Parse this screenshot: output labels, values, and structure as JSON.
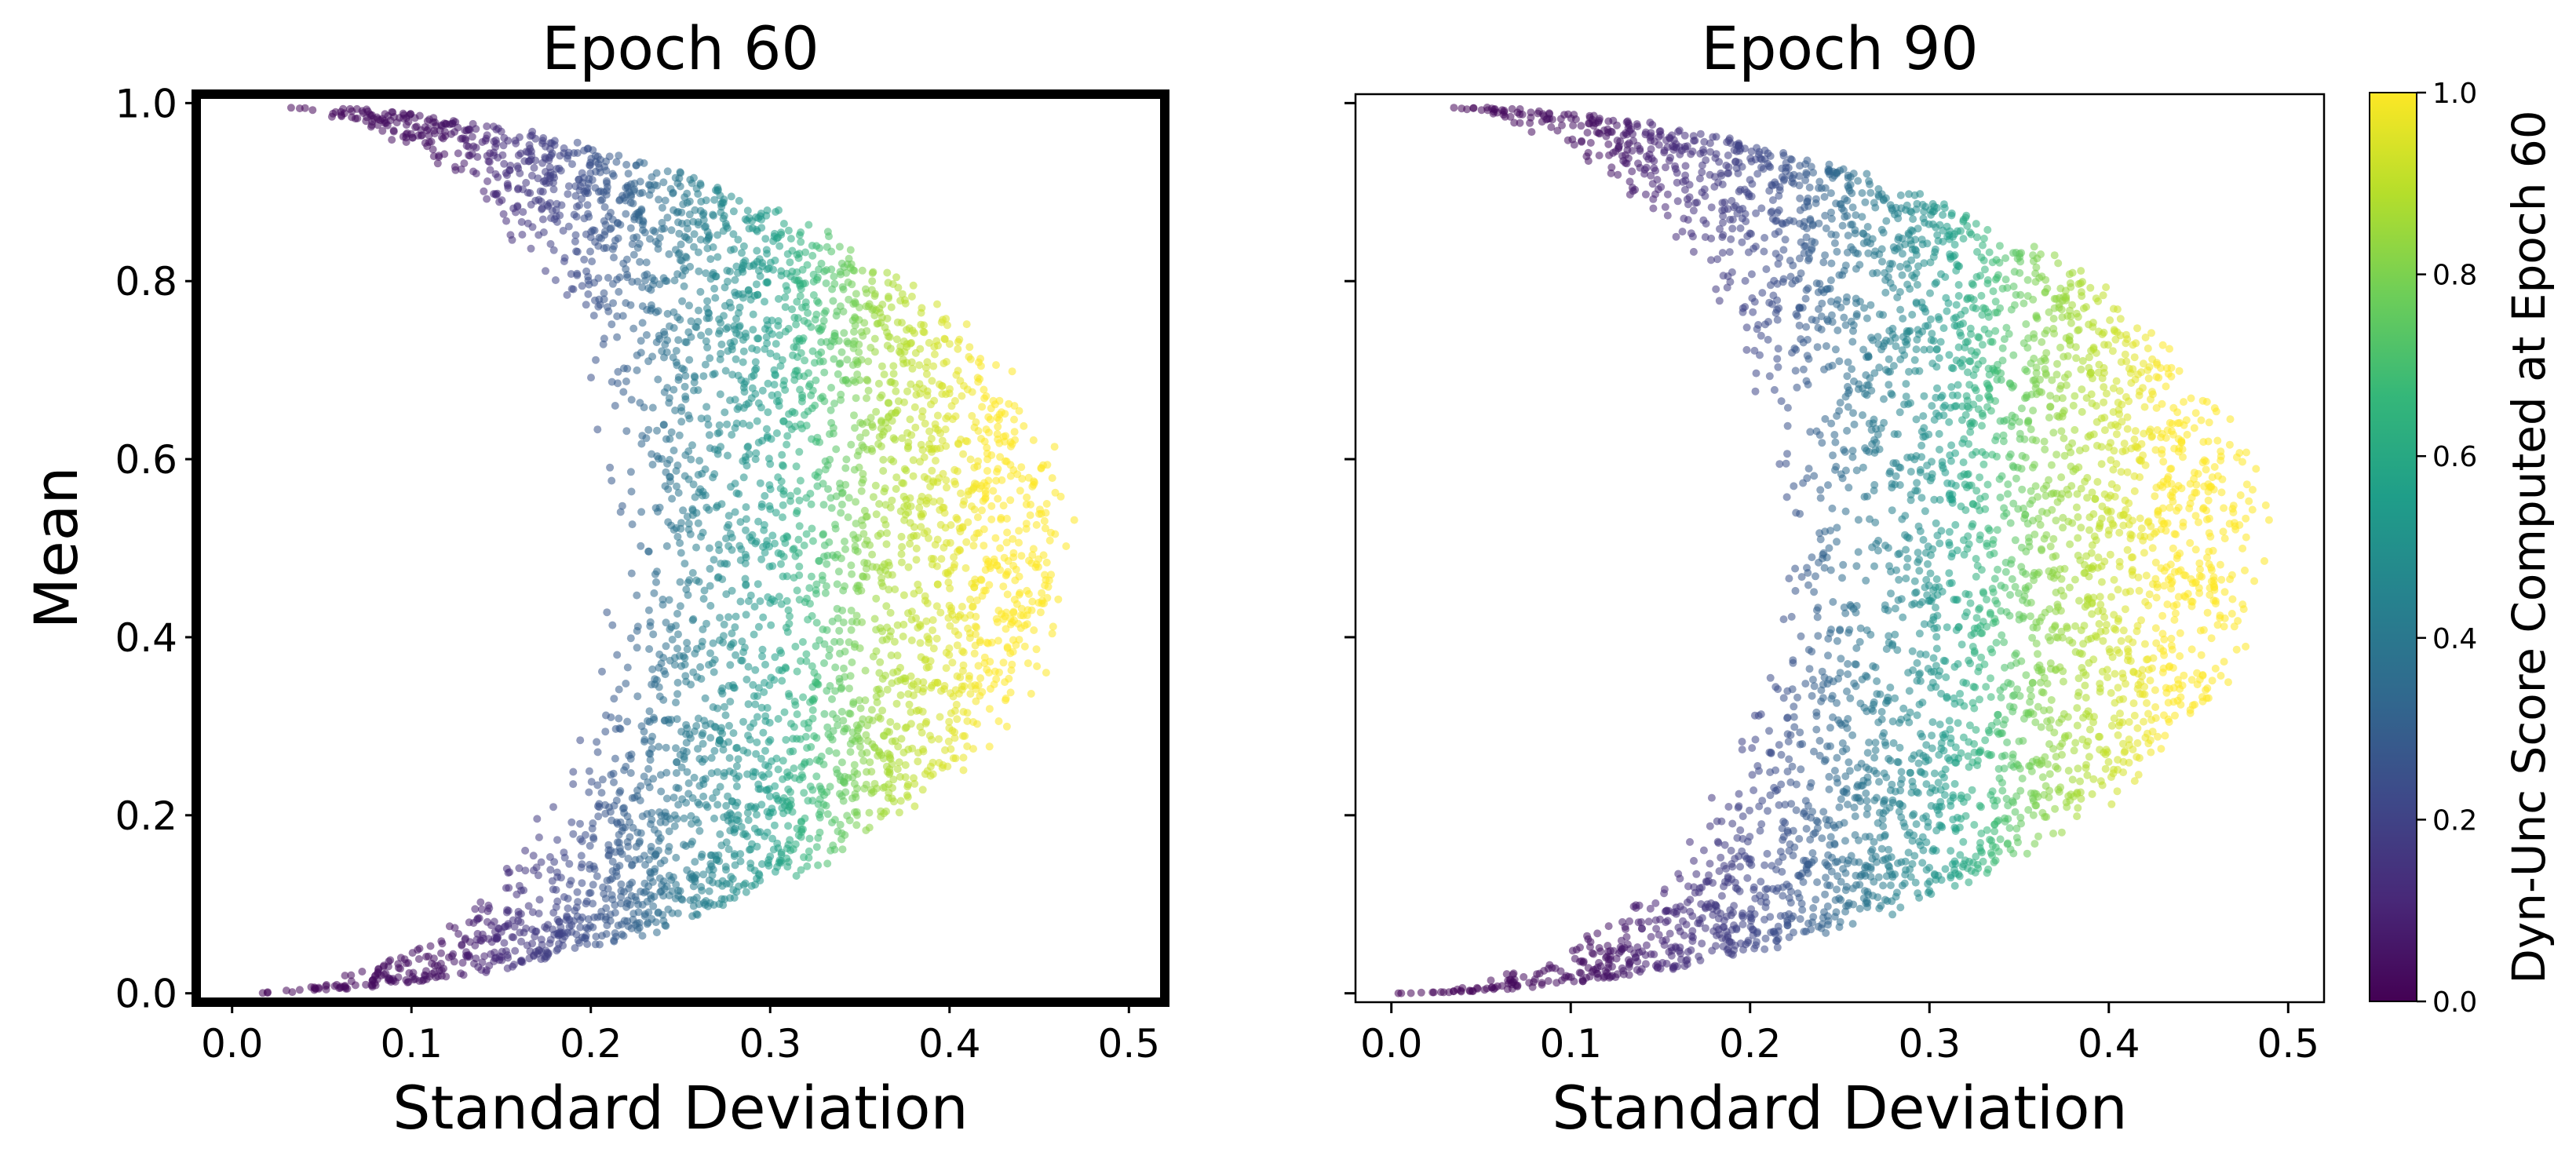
{
  "chart_data": [
    {
      "type": "scatter",
      "title": "Epoch 60",
      "xlabel": "Standard Deviation",
      "ylabel": "Mean",
      "xlim": [
        -0.02,
        0.52
      ],
      "ylim": [
        -0.01,
        1.01
      ],
      "x_ticks": [
        "0.0",
        "0.1",
        "0.2",
        "0.3",
        "0.4",
        "0.5"
      ],
      "y_ticks": [
        "0.0",
        "0.2",
        "0.4",
        "0.6",
        "0.8",
        "1.0"
      ],
      "frame": "thick-black",
      "color_by": "Dyn-Unc score",
      "point_cloud": {
        "shape": "crescent between sqrt(m(1-m))*0.45 and sqrt(m(1-m))*0.92",
        "max_std": 0.46,
        "peak_mean": 0.55,
        "color_vs_std": [
          [
            0.0,
            0.0
          ],
          [
            0.12,
            0.05
          ],
          [
            0.22,
            0.3
          ],
          [
            0.3,
            0.55
          ],
          [
            0.36,
            0.85
          ],
          [
            0.42,
            1.0
          ]
        ]
      }
    },
    {
      "type": "scatter",
      "title": "Epoch 90",
      "xlabel": "Standard Deviation",
      "ylabel": "",
      "xlim": [
        -0.02,
        0.52
      ],
      "ylim": [
        -0.01,
        1.01
      ],
      "x_ticks": [
        "0.0",
        "0.1",
        "0.2",
        "0.3",
        "0.4",
        "0.5"
      ],
      "y_ticks_shown": false,
      "frame": "thin-black",
      "color_by": "Dyn-Unc score computed at Epoch 60",
      "point_cloud": {
        "shape": "crescent between sqrt(m(1-m))*0.45 and sqrt(m(1-m))*0.96",
        "max_std": 0.48,
        "peak_mean": 0.55,
        "color_vs_std": [
          [
            0.0,
            0.0
          ],
          [
            0.12,
            0.05
          ],
          [
            0.22,
            0.25
          ],
          [
            0.3,
            0.5
          ],
          [
            0.36,
            0.8
          ],
          [
            0.43,
            1.0
          ]
        ]
      }
    }
  ],
  "colorbar": {
    "label": "Dyn-Unc Score Computed at Epoch 60",
    "colormap": "viridis",
    "range": [
      0.0,
      1.0
    ],
    "ticks": [
      "0.0",
      "0.2",
      "0.4",
      "0.6",
      "0.8",
      "1.0"
    ],
    "stops": [
      "#440154",
      "#482878",
      "#3e4989",
      "#31688e",
      "#26828e",
      "#1f9e89",
      "#35b779",
      "#6ece58",
      "#b5de2b",
      "#fde725"
    ]
  }
}
